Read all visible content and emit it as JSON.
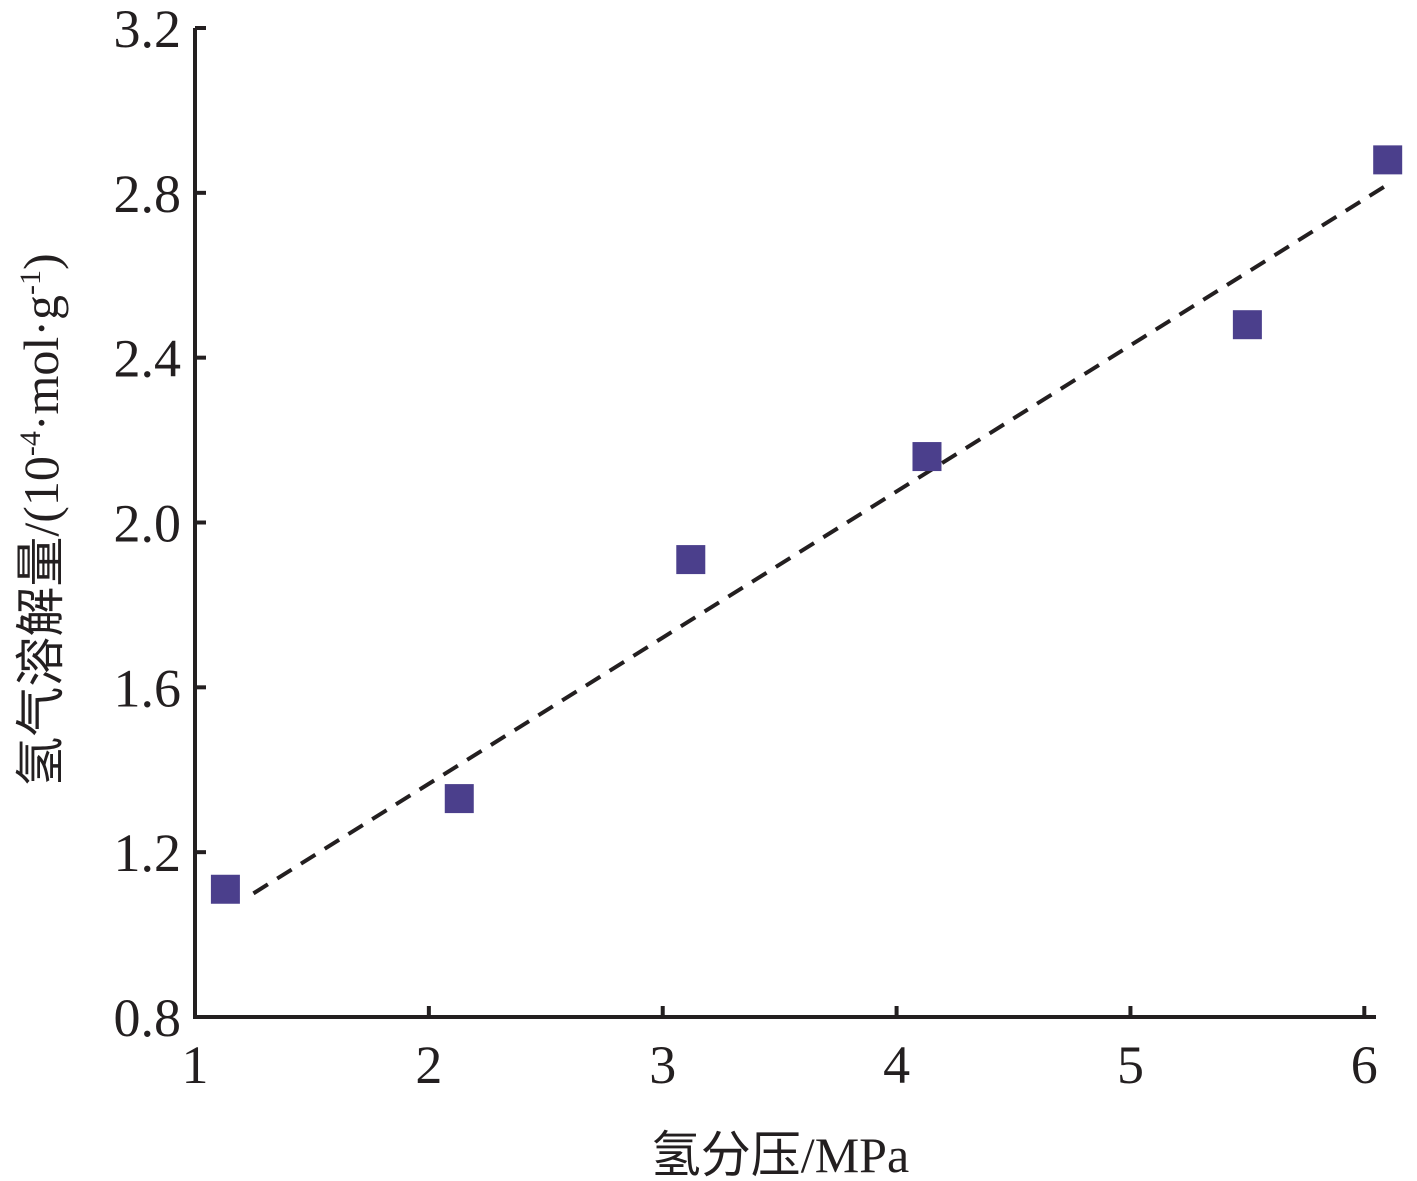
{
  "chart_data": {
    "type": "scatter",
    "title": "",
    "xlabel": "氢分压/MPa",
    "ylabel": {
      "main": "氢气溶解量/(10",
      "sup1": "-4",
      "mid": "·mol·g",
      "sup2": "-1",
      "end": ")"
    },
    "xlim": [
      1,
      6.05
    ],
    "ylim": [
      0.8,
      3.2
    ],
    "xticks": [
      1,
      2,
      3,
      4,
      5,
      6
    ],
    "xtick_labels": [
      "1",
      "2",
      "3",
      "4",
      "5",
      "6"
    ],
    "yticks": [
      0.8,
      1.2,
      1.6,
      2.0,
      2.4,
      2.8,
      3.2
    ],
    "ytick_labels": [
      "0.8",
      "1.2",
      "1.6",
      "2.0",
      "2.4",
      "2.8",
      "3.2"
    ],
    "grid": false,
    "series": [
      {
        "kind": "points",
        "marker": "square",
        "color": "#4b3f8c",
        "x": [
          1.13,
          2.13,
          3.12,
          4.13,
          5.5,
          6.1
        ],
        "y": [
          1.11,
          1.33,
          1.91,
          2.16,
          2.48,
          2.88
        ]
      },
      {
        "kind": "fit-line",
        "style": "dashed",
        "color": "#231f20",
        "x": [
          1.25,
          6.1
        ],
        "y": [
          1.1,
          2.82
        ]
      }
    ]
  }
}
